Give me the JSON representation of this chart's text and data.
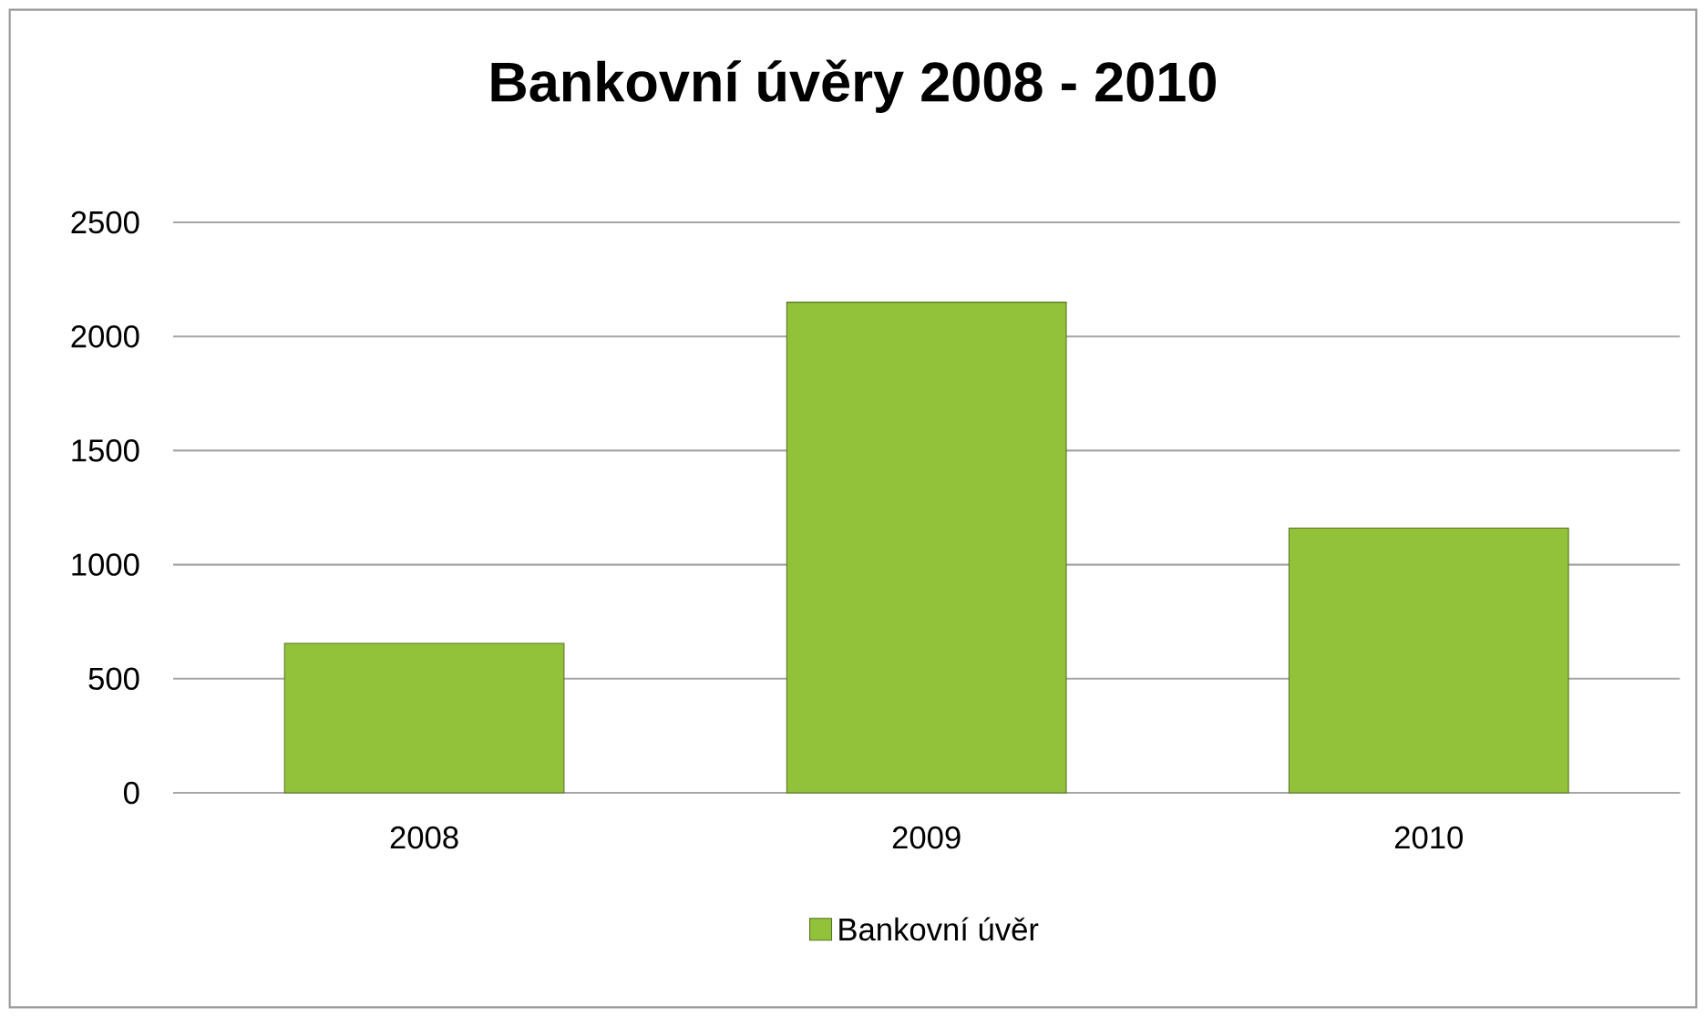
{
  "chart_data": {
    "type": "bar",
    "title": "Bankovní úvěry 2008 - 2010",
    "categories": [
      "2008",
      "2009",
      "2010"
    ],
    "series": [
      {
        "name": "Bankovní úvěr",
        "color": "#92c13a",
        "values": [
          655,
          2150,
          1160
        ]
      }
    ],
    "ylim": [
      0,
      2500
    ],
    "yticks": [
      0,
      500,
      1000,
      1500,
      2000,
      2500
    ],
    "grid": "y",
    "legend": "bottom"
  }
}
